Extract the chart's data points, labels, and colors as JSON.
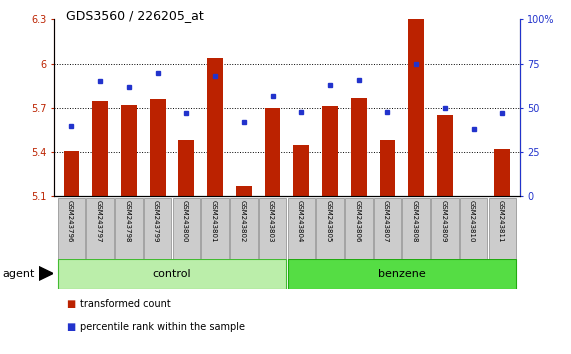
{
  "title": "GDS3560 / 226205_at",
  "samples": [
    "GSM243796",
    "GSM243797",
    "GSM243798",
    "GSM243799",
    "GSM243800",
    "GSM243801",
    "GSM243802",
    "GSM243803",
    "GSM243804",
    "GSM243805",
    "GSM243806",
    "GSM243807",
    "GSM243808",
    "GSM243809",
    "GSM243810",
    "GSM243811"
  ],
  "transformed_count": [
    5.41,
    5.75,
    5.72,
    5.76,
    5.48,
    6.04,
    5.17,
    5.7,
    5.45,
    5.71,
    5.77,
    5.48,
    6.3,
    5.65,
    5.1,
    5.42
  ],
  "percentile_rank": [
    40,
    65,
    62,
    70,
    47,
    68,
    42,
    57,
    48,
    63,
    66,
    48,
    75,
    50,
    38,
    47
  ],
  "ylim_left": [
    5.1,
    6.3
  ],
  "ylim_right": [
    0,
    100
  ],
  "yticks_left": [
    5.1,
    5.4,
    5.7,
    6.0,
    6.3
  ],
  "yticks_right": [
    0,
    25,
    50,
    75,
    100
  ],
  "ytick_labels_left": [
    "5.1",
    "5.4",
    "5.7",
    "6",
    "6.3"
  ],
  "ytick_labels_right": [
    "0",
    "25",
    "50",
    "75",
    "100%"
  ],
  "hline_values": [
    5.4,
    5.7,
    6.0
  ],
  "bar_color": "#bb2200",
  "dot_color": "#2233cc",
  "bar_width": 0.55,
  "control_range": [
    0,
    7
  ],
  "benzene_range": [
    8,
    15
  ],
  "control_color": "#bbeeaa",
  "benzene_color": "#55dd44",
  "control_label": "control",
  "benzene_label": "benzene",
  "agent_label": "agent",
  "legend_items": [
    "transformed count",
    "percentile rank within the sample"
  ],
  "legend_colors": [
    "#bb2200",
    "#2233cc"
  ]
}
